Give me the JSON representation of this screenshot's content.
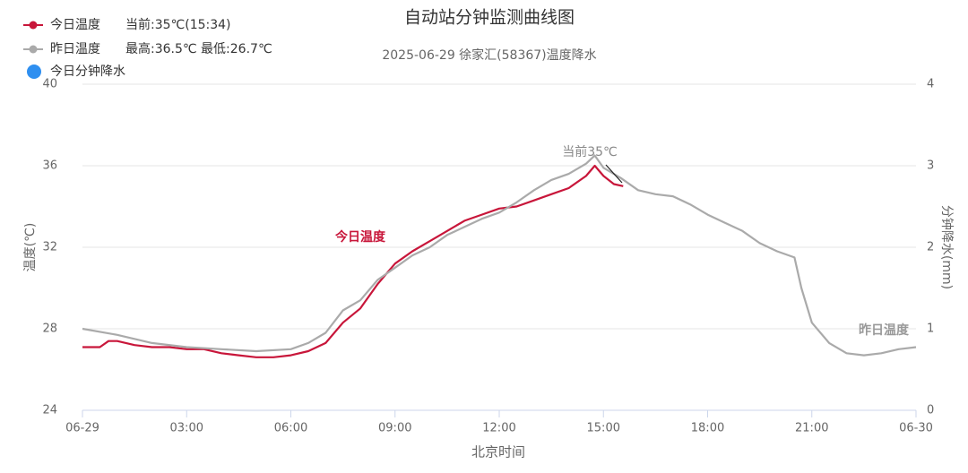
{
  "chart_data": {
    "type": "line",
    "title": "自动站分钟监测曲线图",
    "subtitle": "2025-06-29 徐家汇(58367)温度降水",
    "x_label": "北京时间",
    "y_label": "温度(℃)",
    "y2_label": "分钟降水(mm)",
    "legend_notes": [
      "当前:35℃(15:34)",
      "最高:36.5℃ 最低:26.7℃"
    ],
    "annotations": [
      "当前35℃",
      "今日温度",
      "昨日温度"
    ],
    "xlim": [
      0,
      24
    ],
    "xticks": [
      {
        "value": 0,
        "label": "06-29"
      },
      {
        "value": 3,
        "label": "03:00"
      },
      {
        "value": 6,
        "label": "06:00"
      },
      {
        "value": 9,
        "label": "09:00"
      },
      {
        "value": 12,
        "label": "12:00"
      },
      {
        "value": 15,
        "label": "15:00"
      },
      {
        "value": 18,
        "label": "18:00"
      },
      {
        "value": 21,
        "label": "21:00"
      },
      {
        "value": 24,
        "label": "06-30"
      }
    ],
    "ylim": [
      24,
      40
    ],
    "yticks": [
      24,
      28,
      32,
      36,
      40
    ],
    "y2lim": [
      0,
      4
    ],
    "y2ticks": [
      0,
      1,
      2,
      3,
      4
    ],
    "grid": true,
    "series": [
      {
        "name": "今日温度",
        "color": "#c8163a",
        "x": [
          0,
          0.5,
          0.75,
          1,
          1.5,
          2,
          2.5,
          3,
          3.5,
          4,
          4.5,
          5,
          5.5,
          6,
          6.5,
          7,
          7.5,
          8,
          8.5,
          9,
          9.5,
          10,
          10.5,
          11,
          11.5,
          12,
          12.5,
          13,
          13.5,
          14,
          14.5,
          14.75,
          15,
          15.3,
          15.57
        ],
        "values": [
          27.1,
          27.1,
          27.4,
          27.4,
          27.2,
          27.1,
          27.1,
          27.0,
          27.0,
          26.8,
          26.7,
          26.6,
          26.6,
          26.7,
          26.9,
          27.3,
          28.3,
          29.0,
          30.2,
          31.2,
          31.8,
          32.3,
          32.8,
          33.3,
          33.6,
          33.9,
          34.0,
          34.3,
          34.6,
          34.9,
          35.5,
          36.0,
          35.5,
          35.1,
          35.0
        ]
      },
      {
        "name": "昨日温度",
        "color": "#aaaaaa",
        "x": [
          0,
          1,
          2,
          3,
          4,
          5,
          6,
          6.5,
          7,
          7.5,
          8,
          8.5,
          9,
          9.5,
          10,
          10.5,
          11,
          11.5,
          12,
          12.5,
          13,
          13.5,
          14,
          14.5,
          14.75,
          15,
          15.5,
          16,
          16.5,
          17,
          17.5,
          18,
          18.5,
          19,
          19.5,
          20,
          20.5,
          20.7,
          21,
          21.5,
          22,
          22.5,
          23,
          23.5,
          24
        ],
        "values": [
          28.0,
          27.7,
          27.3,
          27.1,
          27.0,
          26.9,
          27.0,
          27.3,
          27.8,
          28.9,
          29.4,
          30.4,
          31.0,
          31.6,
          32.0,
          32.6,
          33.0,
          33.4,
          33.7,
          34.2,
          34.8,
          35.3,
          35.6,
          36.1,
          36.5,
          35.9,
          35.4,
          34.8,
          34.6,
          34.5,
          34.1,
          33.6,
          33.2,
          32.8,
          32.2,
          31.8,
          31.5,
          30.0,
          28.3,
          27.3,
          26.8,
          26.7,
          26.8,
          27.0,
          27.1
        ]
      },
      {
        "name": "今日分钟降水",
        "color": "#2f8ff0",
        "axis": "y2",
        "x": [],
        "values": []
      }
    ]
  }
}
